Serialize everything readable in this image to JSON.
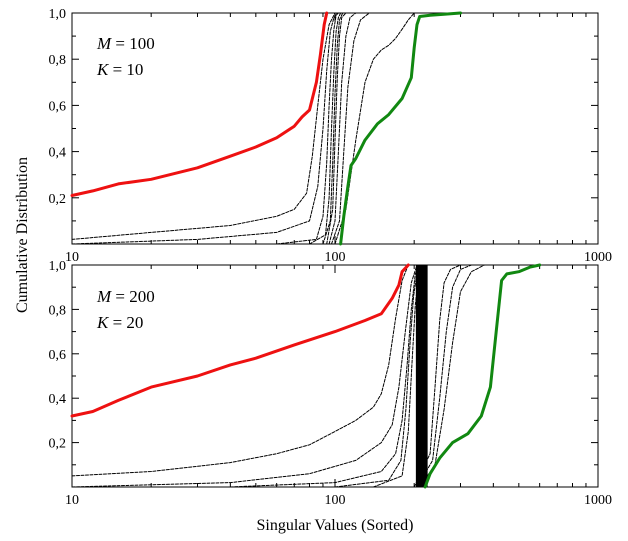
{
  "figure": {
    "ylabel": "Cumulative Distribution",
    "xlabel": "Singular Values (Sorted)"
  },
  "colors": {
    "red": "#ee1111",
    "green": "#118811",
    "black": "#000000"
  },
  "chart_data": [
    {
      "type": "line",
      "xscale": "log",
      "xlim": [
        10,
        1000
      ],
      "ylim": [
        0,
        1.0
      ],
      "x_ticks": [
        10,
        100,
        1000
      ],
      "x_tick_labels": [
        "10",
        "100",
        "1000"
      ],
      "y_ticks": [
        0.2,
        0.4,
        0.6,
        0.8,
        1.0
      ],
      "y_tick_labels": [
        "0,2",
        "0,4",
        "0,6",
        "0,8",
        "1,0"
      ],
      "annotation": {
        "line1_var": "M",
        "line1_val": " = 100",
        "line2_var": "K",
        "line2_val": " = 10"
      },
      "series": [
        {
          "color": "#ee1111",
          "width": 3,
          "x": [
            10,
            12,
            15,
            20,
            30,
            40,
            50,
            60,
            70,
            75,
            80,
            85,
            88,
            91,
            93
          ],
          "y": [
            0.21,
            0.23,
            0.26,
            0.28,
            0.33,
            0.38,
            0.42,
            0.46,
            0.51,
            0.55,
            0.58,
            0.7,
            0.82,
            0.95,
            1.0
          ]
        },
        {
          "color": "#118811",
          "width": 3,
          "x": [
            105,
            108,
            112,
            115,
            120,
            130,
            145,
            160,
            180,
            195,
            200,
            205,
            210,
            230,
            260,
            300
          ],
          "y": [
            0.0,
            0.12,
            0.25,
            0.34,
            0.37,
            0.45,
            0.52,
            0.56,
            0.63,
            0.72,
            0.85,
            0.95,
            0.985,
            0.99,
            0.995,
            1.0
          ]
        },
        {
          "color": "#000000",
          "width": 1,
          "x": [
            10,
            20,
            40,
            60,
            70,
            78,
            82,
            86,
            90,
            95,
            100
          ],
          "y": [
            0.02,
            0.05,
            0.08,
            0.12,
            0.15,
            0.22,
            0.38,
            0.6,
            0.8,
            0.95,
            1.0
          ]
        },
        {
          "color": "#000000",
          "width": 1,
          "x": [
            10,
            30,
            60,
            80,
            86,
            90,
            93,
            96,
            99,
            102
          ],
          "y": [
            0.0,
            0.02,
            0.05,
            0.1,
            0.25,
            0.5,
            0.75,
            0.92,
            0.98,
            1.0
          ]
        },
        {
          "color": "#000000",
          "width": 1,
          "x": [
            60,
            85,
            90,
            93,
            95,
            97,
            99,
            101,
            103
          ],
          "y": [
            0.0,
            0.02,
            0.12,
            0.35,
            0.6,
            0.8,
            0.93,
            0.99,
            1.0
          ]
        },
        {
          "color": "#000000",
          "width": 1,
          "x": [
            80,
            92,
            95,
            97,
            99,
            101,
            103,
            105
          ],
          "y": [
            0.0,
            0.04,
            0.2,
            0.5,
            0.75,
            0.92,
            0.98,
            1.0
          ]
        },
        {
          "color": "#000000",
          "width": 1,
          "x": [
            90,
            96,
            98,
            100,
            102,
            104,
            107
          ],
          "y": [
            0.0,
            0.1,
            0.35,
            0.65,
            0.86,
            0.97,
            1.0
          ]
        },
        {
          "color": "#000000",
          "width": 1,
          "x": [
            93,
            98,
            100,
            102,
            104,
            106,
            110
          ],
          "y": [
            0.0,
            0.15,
            0.45,
            0.72,
            0.9,
            0.98,
            1.0
          ]
        },
        {
          "color": "#000000",
          "width": 1,
          "x": [
            95,
            100,
            103,
            106,
            110,
            114,
            120
          ],
          "y": [
            0.0,
            0.1,
            0.4,
            0.7,
            0.9,
            0.98,
            1.0
          ]
        },
        {
          "color": "#000000",
          "width": 1,
          "x": [
            97,
            104,
            108,
            112,
            118,
            125,
            135
          ],
          "y": [
            0.0,
            0.1,
            0.4,
            0.68,
            0.88,
            0.97,
            1.0
          ]
        },
        {
          "color": "#000000",
          "width": 1,
          "x": [
            100,
            110,
            120,
            130,
            140,
            150,
            160,
            170,
            180,
            190,
            200
          ],
          "y": [
            0.0,
            0.15,
            0.45,
            0.7,
            0.8,
            0.84,
            0.86,
            0.89,
            0.93,
            0.97,
            1.0
          ]
        }
      ]
    },
    {
      "type": "line",
      "xscale": "log",
      "xlim": [
        10,
        1000
      ],
      "ylim": [
        0,
        1.0
      ],
      "x_ticks": [
        10,
        100,
        1000
      ],
      "x_tick_labels": [
        "10",
        "100",
        "1000"
      ],
      "y_ticks": [
        0.2,
        0.4,
        0.6,
        0.8,
        1.0
      ],
      "y_tick_labels": [
        "0,2",
        "0,4",
        "0,6",
        "0,8",
        "1,0"
      ],
      "annotation": {
        "line1_var": "M",
        "line1_val": " = 200",
        "line2_var": "K",
        "line2_val": " = 20"
      },
      "band": {
        "x": [
          203,
          225
        ],
        "y": [
          0,
          1.0
        ]
      },
      "series": [
        {
          "color": "#ee1111",
          "width": 3,
          "x": [
            10,
            12,
            15,
            20,
            30,
            40,
            50,
            70,
            100,
            130,
            150,
            165,
            175,
            180,
            190
          ],
          "y": [
            0.32,
            0.34,
            0.39,
            0.45,
            0.5,
            0.55,
            0.58,
            0.64,
            0.7,
            0.75,
            0.78,
            0.85,
            0.91,
            0.97,
            1.0
          ]
        },
        {
          "color": "#118811",
          "width": 3,
          "x": [
            220,
            230,
            250,
            280,
            320,
            360,
            390,
            410,
            430,
            450,
            500,
            550,
            600
          ],
          "y": [
            0.0,
            0.06,
            0.13,
            0.2,
            0.24,
            0.32,
            0.45,
            0.7,
            0.93,
            0.96,
            0.97,
            0.99,
            1.0
          ]
        },
        {
          "color": "#000000",
          "width": 1,
          "x": [
            10,
            20,
            40,
            60,
            80,
            100,
            120,
            140,
            150,
            160,
            170,
            180,
            190
          ],
          "y": [
            0.05,
            0.07,
            0.11,
            0.15,
            0.19,
            0.25,
            0.3,
            0.36,
            0.42,
            0.55,
            0.76,
            0.93,
            1.0
          ]
        },
        {
          "color": "#000000",
          "width": 1,
          "x": [
            10,
            40,
            80,
            120,
            150,
            165,
            175,
            185,
            195,
            205
          ],
          "y": [
            0.0,
            0.02,
            0.06,
            0.12,
            0.2,
            0.28,
            0.45,
            0.7,
            0.92,
            1.0
          ]
        },
        {
          "color": "#000000",
          "width": 1,
          "x": [
            40,
            100,
            150,
            170,
            180,
            188,
            195,
            202,
            210
          ],
          "y": [
            0.0,
            0.02,
            0.07,
            0.15,
            0.3,
            0.55,
            0.8,
            0.96,
            1.0
          ]
        },
        {
          "color": "#000000",
          "width": 1,
          "x": [
            100,
            160,
            178,
            186,
            193,
            199,
            206,
            214
          ],
          "y": [
            0.0,
            0.03,
            0.12,
            0.35,
            0.65,
            0.86,
            0.98,
            1.0
          ]
        },
        {
          "color": "#000000",
          "width": 1,
          "x": [
            140,
            180,
            190,
            196,
            202,
            208,
            216
          ],
          "y": [
            0.0,
            0.05,
            0.25,
            0.55,
            0.82,
            0.96,
            1.0
          ]
        },
        {
          "color": "#000000",
          "width": 1,
          "x": [
            200,
            230,
            240,
            250,
            260,
            275,
            300
          ],
          "y": [
            0.0,
            0.15,
            0.45,
            0.75,
            0.92,
            0.98,
            1.0
          ]
        },
        {
          "color": "#000000",
          "width": 1,
          "x": [
            205,
            235,
            250,
            265,
            280,
            300,
            330
          ],
          "y": [
            0.0,
            0.12,
            0.4,
            0.7,
            0.9,
            0.98,
            1.0
          ]
        },
        {
          "color": "#000000",
          "width": 1,
          "x": [
            210,
            240,
            260,
            280,
            300,
            330,
            370
          ],
          "y": [
            0.0,
            0.1,
            0.35,
            0.65,
            0.88,
            0.97,
            1.0
          ]
        }
      ]
    }
  ]
}
